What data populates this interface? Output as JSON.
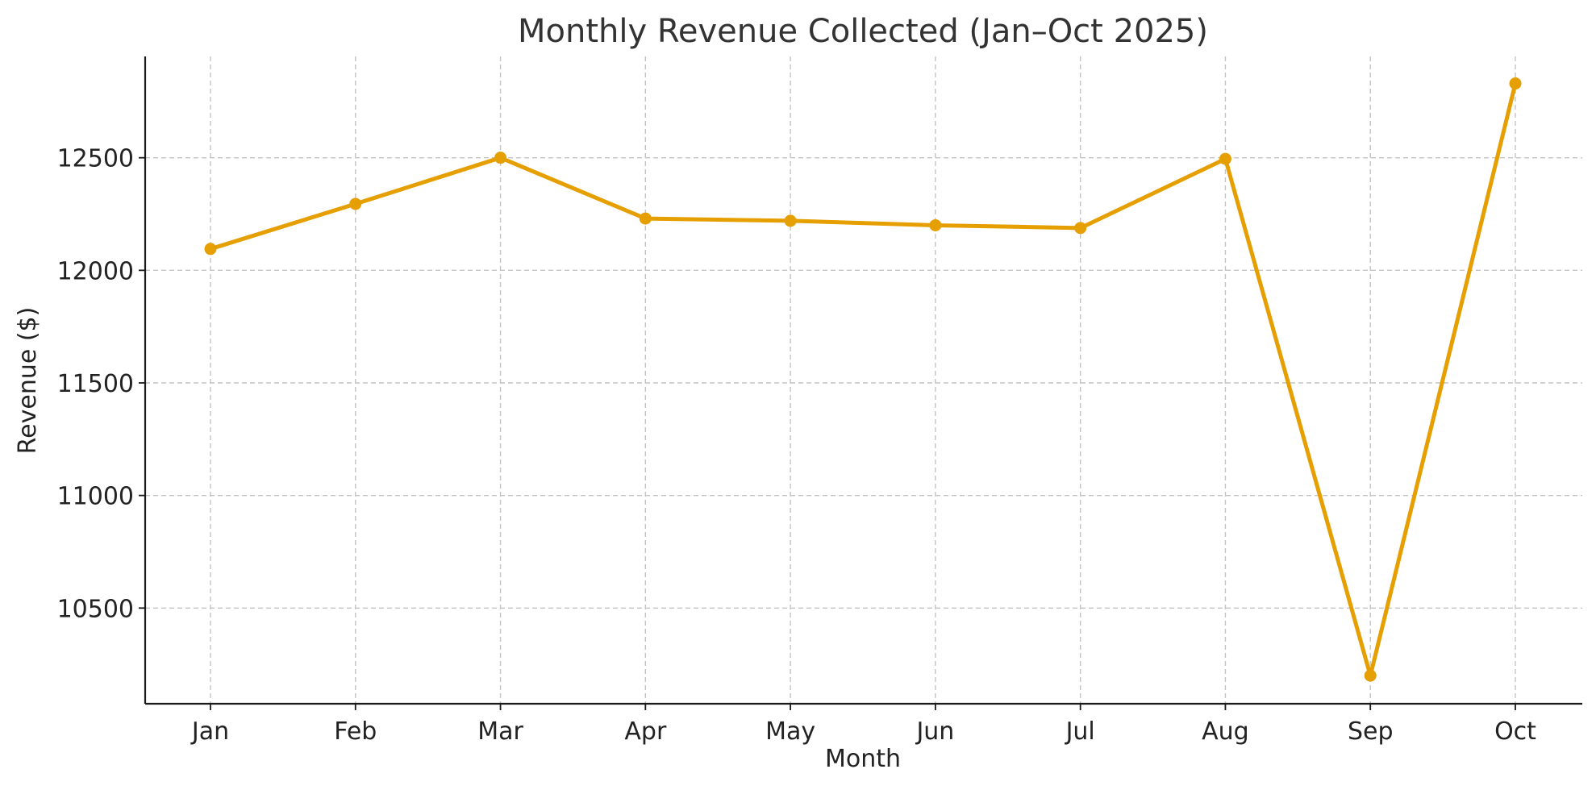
{
  "chart_data": {
    "type": "line",
    "title": "Monthly Revenue Collected (Jan–Oct 2025)",
    "xlabel": "Month",
    "ylabel": "Revenue ($)",
    "categories": [
      "Jan",
      "Feb",
      "Mar",
      "Apr",
      "May",
      "Jun",
      "Jul",
      "Aug",
      "Sep",
      "Oct"
    ],
    "series": [
      {
        "name": "Revenue",
        "color": "#E69F00",
        "values": [
          12095,
          12295,
          12500,
          12230,
          12220,
          12200,
          12188,
          12495,
          10200,
          12830
        ]
      }
    ],
    "ylim": [
      10075,
      12950
    ],
    "yticks": [
      10500,
      11000,
      11500,
      12000,
      12500
    ],
    "grid": true,
    "legend": "none"
  }
}
